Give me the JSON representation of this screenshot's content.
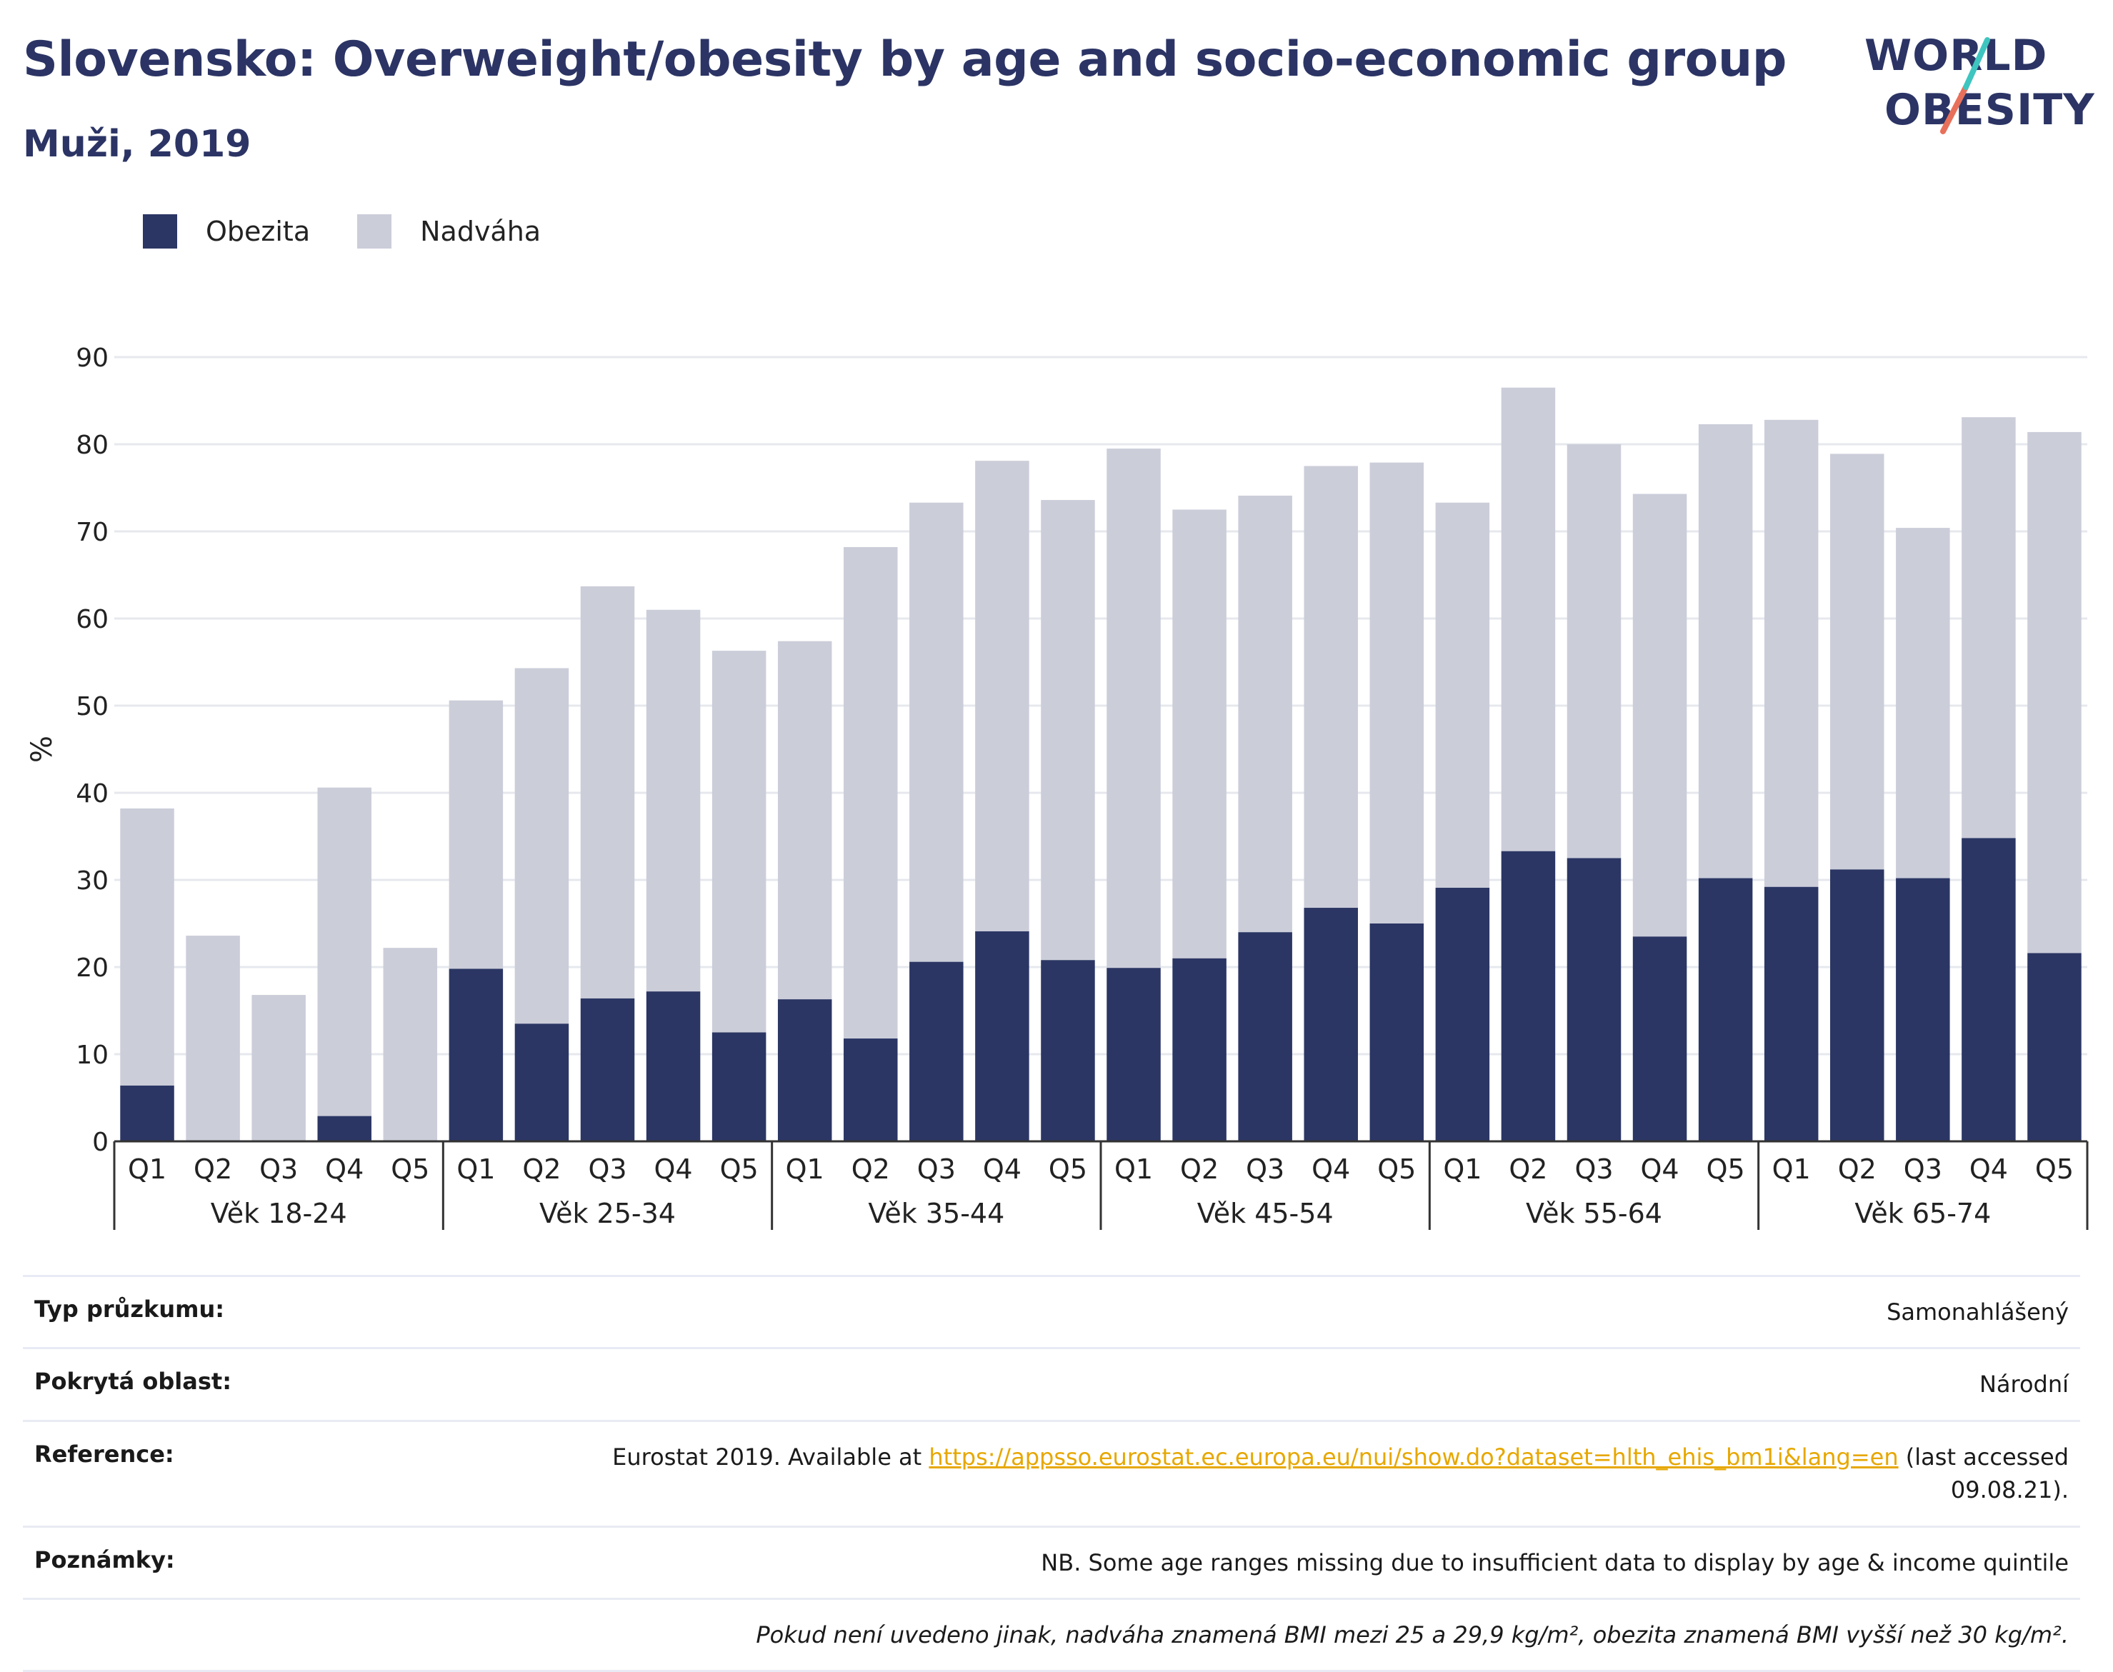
{
  "header": {
    "title": "Slovensko: Overweight/obesity by age and socio-economic group",
    "subtitle": "Muži, 2019"
  },
  "logo": {
    "line1": "WORLD",
    "line2": "OBESITY",
    "icon": "world-obesity-slash-logo"
  },
  "colors": {
    "obesity": "#2b3664",
    "overweight": "#cbcdd9",
    "title": "#2b3464",
    "link": "#e6a700",
    "logo_teal": "#3ec5c0",
    "logo_coral": "#e8705a"
  },
  "legend": [
    {
      "label": "Obezita",
      "color": "#2b3664"
    },
    {
      "label": "Nadváha",
      "color": "#cbcdd9"
    }
  ],
  "chart_data": {
    "type": "bar",
    "stacked": true,
    "title": "Slovensko: Overweight/obesity by age and socio-economic group",
    "subtitle": "Muži, 2019",
    "ylabel": "%",
    "ylim": [
      0,
      90
    ],
    "yticks": [
      0,
      10,
      20,
      30,
      40,
      50,
      60,
      70,
      80,
      90
    ],
    "grid": true,
    "legend_position": "top-left",
    "groups": [
      {
        "label": "Věk 18-24",
        "categories": [
          "Q1",
          "Q2",
          "Q3",
          "Q4",
          "Q5"
        ]
      },
      {
        "label": "Věk 25-34",
        "categories": [
          "Q1",
          "Q2",
          "Q3",
          "Q4",
          "Q5"
        ]
      },
      {
        "label": "Věk 35-44",
        "categories": [
          "Q1",
          "Q2",
          "Q3",
          "Q4",
          "Q5"
        ]
      },
      {
        "label": "Věk 45-54",
        "categories": [
          "Q1",
          "Q2",
          "Q3",
          "Q4",
          "Q5"
        ]
      },
      {
        "label": "Věk 55-64",
        "categories": [
          "Q1",
          "Q2",
          "Q3",
          "Q4",
          "Q5"
        ]
      },
      {
        "label": "Věk 65-74",
        "categories": [
          "Q1",
          "Q2",
          "Q3",
          "Q4",
          "Q5"
        ]
      }
    ],
    "series": [
      {
        "name": "Obezita",
        "values": [
          6.4,
          0,
          0,
          2.9,
          0,
          19.8,
          13.5,
          16.4,
          17.2,
          12.5,
          16.3,
          11.8,
          20.6,
          24.1,
          20.8,
          19.9,
          21.0,
          24.0,
          26.8,
          25.0,
          29.1,
          33.3,
          32.5,
          23.5,
          30.2,
          29.2,
          31.2,
          30.2,
          34.8,
          21.6
        ]
      },
      {
        "name": "Nadváha",
        "values": [
          31.8,
          23.6,
          16.8,
          37.7,
          22.2,
          30.8,
          40.8,
          47.3,
          43.8,
          43.8,
          41.1,
          56.4,
          52.7,
          54.0,
          52.8,
          59.6,
          51.5,
          50.1,
          50.7,
          52.9,
          44.2,
          53.2,
          47.5,
          50.8,
          52.1,
          53.6,
          47.7,
          40.2,
          48.3,
          59.8
        ]
      }
    ]
  },
  "info": {
    "rows": [
      {
        "key": "Typ průzkumu:",
        "value": "Samonahlášený"
      },
      {
        "key": "Pokrytá oblast:",
        "value": "Národní"
      },
      {
        "key": "Reference:",
        "value_prefix": "Eurostat 2019. Available at ",
        "link": "https://appsso.eurostat.ec.europa.eu/nui/show.do?dataset=hlth_ehis_bm1i&lang=en",
        "value_suffix": " (last accessed",
        "value_line2": "09.08.21)."
      },
      {
        "key": "Poznámky:",
        "value": "NB. Some age ranges missing due to insufficient data to display by age & income quintile"
      }
    ],
    "footnote": "Pokud není uvedeno jinak, nadváha znamená BMI mezi 25 a 29,9 kg/m², obezita znamená BMI vyšší než 30 kg/m²."
  }
}
